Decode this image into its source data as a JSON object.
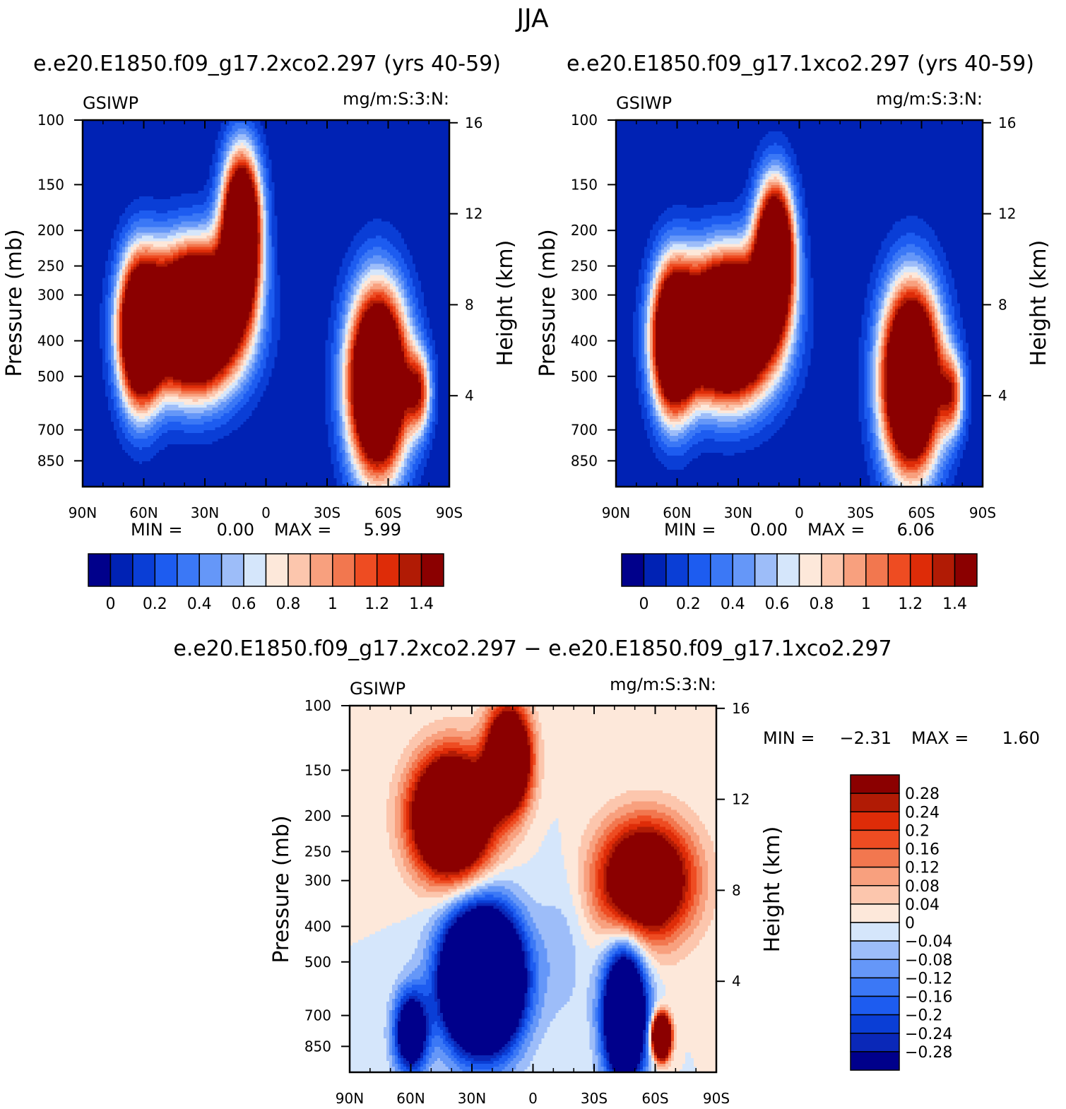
{
  "figure": {
    "title": "JJA"
  },
  "colors": {
    "abs_scale": [
      "#00008b",
      "#0022b4",
      "#0a3ed6",
      "#1d5cf0",
      "#3b78f6",
      "#6597f8",
      "#9dbdf9",
      "#d5e6fb",
      "#fde8da",
      "#fcc6ad",
      "#f8a07e",
      "#f2774f",
      "#ee4c22",
      "#de2c08",
      "#b11b05",
      "#8b0000"
    ],
    "diff_scale": [
      "#00008b",
      "#0a28b8",
      "#0a3ed6",
      "#1d5cf0",
      "#3b78f6",
      "#6597f8",
      "#9dbdf9",
      "#d5e6fb",
      "#fde8da",
      "#fcc6ad",
      "#f8a07e",
      "#f2774f",
      "#ee4c22",
      "#de2c08",
      "#b11b05",
      "#8b0000"
    ]
  },
  "chart_data": [
    {
      "type": "heatmap",
      "id": "case1",
      "title": "e.e20.E1850.f09_g17.2xco2.297 (yrs 40-59)",
      "left_label": "GSIWP",
      "right_label": "mg/m:S:3:N:",
      "xlabel": "",
      "ylabel": "Pressure (mb)",
      "y2label": "Height (km)",
      "x_ticks": [
        "90N",
        "60N",
        "30N",
        "0",
        "30S",
        "60S",
        "90S"
      ],
      "x_range": [
        90,
        -90
      ],
      "y_ticks": [
        100,
        150,
        200,
        250,
        300,
        400,
        500,
        700,
        850
      ],
      "y_range_mb": [
        100,
        1000
      ],
      "y2_ticks": [
        16,
        12,
        8,
        4
      ],
      "stats": {
        "min_label": "MIN =",
        "min": "0.00",
        "max_label": "MAX =",
        "max": "5.99"
      },
      "colorbar_labels": [
        "0",
        "0.2",
        "0.4",
        "0.6",
        "0.8",
        "1",
        "1.2",
        "1.4"
      ],
      "levels": [
        0,
        0.1,
        0.2,
        0.3,
        0.4,
        0.5,
        0.6,
        0.7,
        0.8,
        0.9,
        1.0,
        1.1,
        1.2,
        1.3,
        1.4
      ],
      "features": [
        {
          "lat": 35,
          "p": 350,
          "amp": 3.5,
          "slat": 22,
          "sp": 0.42
        },
        {
          "lat": 12,
          "p": 200,
          "amp": 3.0,
          "slat": 9,
          "sp": 0.45
        },
        {
          "lat": 62,
          "p": 380,
          "amp": 2.5,
          "slat": 10,
          "sp": 0.45
        },
        {
          "lat": -55,
          "p": 520,
          "amp": 3.2,
          "slat": 14,
          "sp": 0.55
        },
        {
          "lat": -75,
          "p": 550,
          "amp": 1.1,
          "slat": 6,
          "sp": 0.25
        }
      ]
    },
    {
      "type": "heatmap",
      "id": "case2",
      "title": "e.e20.E1850.f09_g17.1xco2.297 (yrs 40-59)",
      "left_label": "GSIWP",
      "right_label": "mg/m:S:3:N:",
      "xlabel": "",
      "ylabel": "Pressure (mb)",
      "y2label": "Height (km)",
      "x_ticks": [
        "90N",
        "60N",
        "30N",
        "0",
        "30S",
        "60S",
        "90S"
      ],
      "x_range": [
        90,
        -90
      ],
      "y_ticks": [
        100,
        150,
        200,
        250,
        300,
        400,
        500,
        700,
        850
      ],
      "y_range_mb": [
        100,
        1000
      ],
      "y2_ticks": [
        16,
        12,
        8,
        4
      ],
      "stats": {
        "min_label": "MIN =",
        "min": "0.00",
        "max_label": "MAX =",
        "max": "6.06"
      },
      "colorbar_labels": [
        "0",
        "0.2",
        "0.4",
        "0.6",
        "0.8",
        "1",
        "1.2",
        "1.4"
      ],
      "levels": [
        0,
        0.1,
        0.2,
        0.3,
        0.4,
        0.5,
        0.6,
        0.7,
        0.8,
        0.9,
        1.0,
        1.1,
        1.2,
        1.3,
        1.4
      ],
      "features": [
        {
          "lat": 35,
          "p": 370,
          "amp": 3.5,
          "slat": 22,
          "sp": 0.42
        },
        {
          "lat": 12,
          "p": 230,
          "amp": 2.8,
          "slat": 9,
          "sp": 0.42
        },
        {
          "lat": 62,
          "p": 400,
          "amp": 2.5,
          "slat": 10,
          "sp": 0.45
        },
        {
          "lat": -55,
          "p": 510,
          "amp": 3.2,
          "slat": 14,
          "sp": 0.55
        },
        {
          "lat": -75,
          "p": 560,
          "amp": 1.0,
          "slat": 6,
          "sp": 0.25
        }
      ]
    },
    {
      "type": "heatmap",
      "id": "diff",
      "title": "e.e20.E1850.f09_g17.2xco2.297 − e.e20.E1850.f09_g17.1xco2.297",
      "left_label": "GSIWP",
      "right_label": "mg/m:S:3:N:",
      "xlabel": "",
      "ylabel": "Pressure (mb)",
      "y2label": "Height (km)",
      "x_ticks": [
        "90N",
        "60N",
        "30N",
        "0",
        "30S",
        "60S",
        "90S"
      ],
      "x_range": [
        90,
        -90
      ],
      "y_ticks": [
        100,
        150,
        200,
        250,
        300,
        400,
        500,
        700,
        850
      ],
      "y_range_mb": [
        100,
        1000
      ],
      "y2_ticks": [
        16,
        12,
        8,
        4
      ],
      "stats": {
        "min_label": "MIN =",
        "min": "−2.31",
        "max_label": "MAX =",
        "max": "1.60"
      },
      "colorbar_labels": [
        "0.28",
        "0.24",
        "0.2",
        "0.16",
        "0.12",
        "0.08",
        "0.04",
        "0",
        "−0.04",
        "−0.08",
        "−0.12",
        "−0.16",
        "−0.2",
        "−0.24",
        "−0.28"
      ],
      "levels": [
        -0.28,
        -0.24,
        -0.2,
        -0.16,
        -0.12,
        -0.08,
        -0.04,
        0,
        0.04,
        0.08,
        0.12,
        0.16,
        0.2,
        0.24,
        0.28
      ],
      "features": [
        {
          "lat": 40,
          "p": 200,
          "amp": 0.9,
          "slat": 18,
          "sp": 0.35
        },
        {
          "lat": 12,
          "p": 140,
          "amp": 0.8,
          "slat": 10,
          "sp": 0.3
        },
        {
          "lat": 25,
          "p": 560,
          "amp": -1.2,
          "slat": 18,
          "sp": 0.4
        },
        {
          "lat": 60,
          "p": 780,
          "amp": -0.5,
          "slat": 8,
          "sp": 0.25
        },
        {
          "lat": -55,
          "p": 300,
          "amp": 0.6,
          "slat": 22,
          "sp": 0.35
        },
        {
          "lat": -45,
          "p": 700,
          "amp": -0.8,
          "slat": 10,
          "sp": 0.4
        },
        {
          "lat": -63,
          "p": 800,
          "amp": 1.2,
          "slat": 4,
          "sp": 0.12
        },
        {
          "lat": -15,
          "p": 450,
          "amp": -0.06,
          "slat": 12,
          "sp": 0.5
        }
      ]
    }
  ]
}
